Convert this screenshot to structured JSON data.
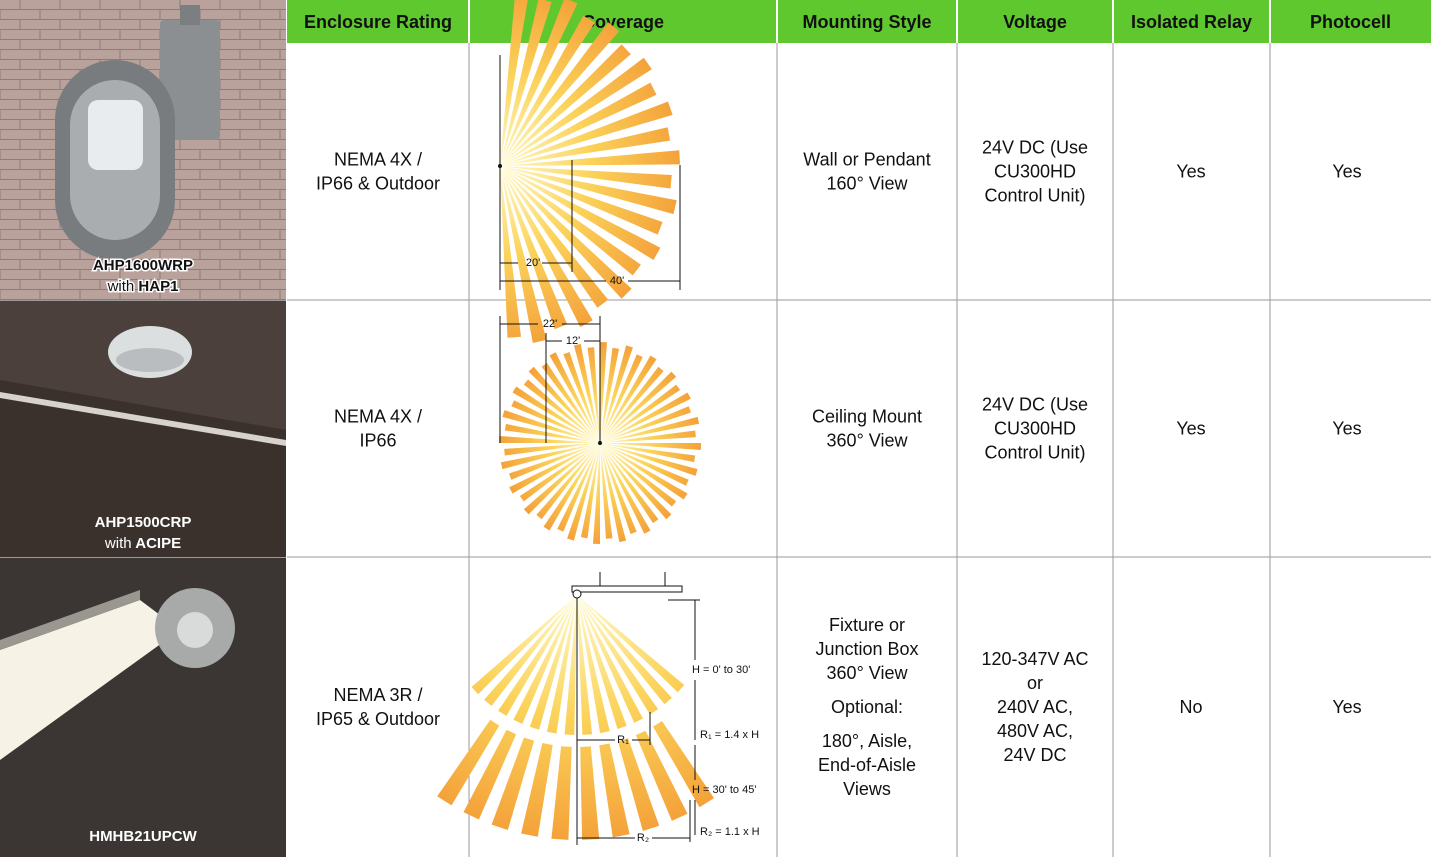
{
  "header": {
    "columns": [
      "Enclosure Rating",
      "Coverage",
      "Mounting Style",
      "Voltage",
      "Isolated Relay",
      "Photocell"
    ]
  },
  "rows": [
    {
      "model": "AHP1600WRP",
      "with": "with",
      "accessory": "HAP1",
      "enclosure": [
        "NEMA 4X /",
        "IP66 & Outdoor"
      ],
      "coverage": [
        "20'",
        "40'"
      ],
      "mounting": [
        [
          "Wall or Pendant",
          "160° View"
        ]
      ],
      "voltage": [
        "24V DC (Use",
        "CU300HD",
        "Control Unit)"
      ],
      "relay": "Yes",
      "photocell": "Yes"
    },
    {
      "model": "AHP1500CRP",
      "with": "with",
      "accessory": "ACIPE",
      "enclosure": [
        "NEMA 4X /",
        "IP66"
      ],
      "coverage": [
        "22'",
        "12'"
      ],
      "mounting": [
        [
          "Ceiling Mount",
          "360° View"
        ]
      ],
      "voltage": [
        "24V DC (Use",
        "CU300HD",
        "Control Unit)"
      ],
      "relay": "Yes",
      "photocell": "Yes"
    },
    {
      "model": "HMHB21UPCW",
      "enclosure": [
        "NEMA 3R /",
        "IP65 & Outdoor"
      ],
      "coverage": [
        "H = 0' to 30'",
        "R₁ = 1.4 x H",
        "R₁",
        "H = 30' to 45'",
        "R₂ = 1.1 x H",
        "R₂"
      ],
      "mounting": [
        [
          "Fixture or",
          "Junction Box",
          "360° View"
        ],
        [
          "Optional:"
        ],
        [
          "180°, Aisle,",
          "End-of-Aisle",
          "Views"
        ]
      ],
      "voltage": [
        "120-347V AC",
        "or",
        "240V AC,",
        "480V AC,",
        "24V DC"
      ],
      "relay": "No",
      "photocell": "Yes"
    }
  ]
}
